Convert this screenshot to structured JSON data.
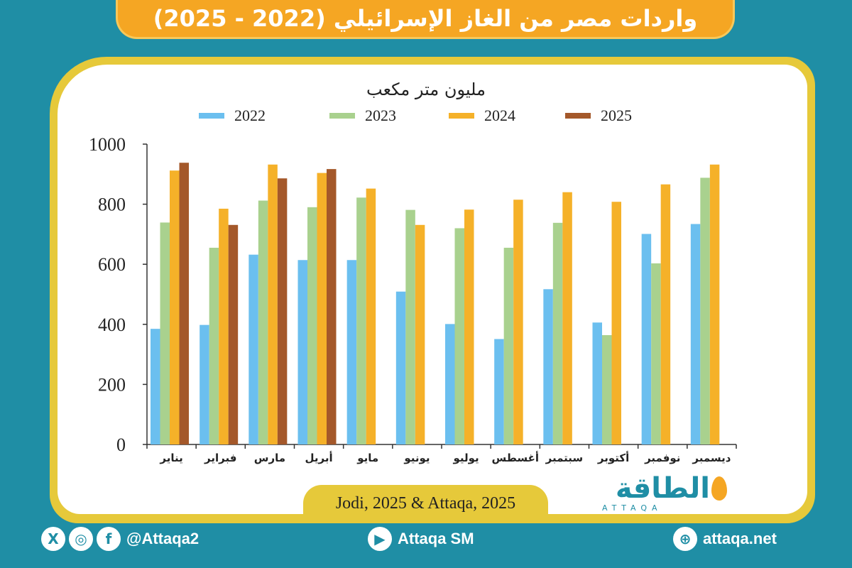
{
  "title": "واردات مصر من الغاز الإسرائيلي (2022 - 2025)",
  "source": "Jodi, 2025 & Attaqa, 2025",
  "logo": {
    "arabic": "الطاقة",
    "latin": "ATTAQA"
  },
  "footer": {
    "social_handle": "@Attaqa2",
    "youtube": "Attaqa SM",
    "website": "attaqa.net"
  },
  "colors": {
    "background": "#1f8ea5",
    "banner": "#f5a623",
    "border": "#e6c93a",
    "series_2022": "#6bbfef",
    "series_2023": "#a9d18e",
    "series_2024": "#f5b129",
    "series_2025": "#a4582a"
  },
  "chart_data": {
    "type": "bar",
    "ylabel": "مليون متر مكعب",
    "ylim": [
      0,
      1000
    ],
    "yticks": [
      0,
      200,
      400,
      600,
      800,
      1000
    ],
    "grid": false,
    "legend_position": "top",
    "categories": [
      "يناير",
      "فبراير",
      "مارس",
      "أبريل",
      "مايو",
      "يونيو",
      "يوليو",
      "أغسطس",
      "سبتمبر",
      "أكتوبر",
      "نوفمبر",
      "ديسمبر"
    ],
    "series": [
      {
        "name": "2022",
        "color": "#6bbfef",
        "values": [
          385,
          398,
          632,
          614,
          614,
          509,
          401,
          351,
          517,
          406,
          701,
          734
        ]
      },
      {
        "name": "2023",
        "color": "#a9d18e",
        "values": [
          739,
          655,
          812,
          790,
          822,
          781,
          720,
          655,
          738,
          364,
          603,
          888
        ]
      },
      {
        "name": "2024",
        "color": "#f5b129",
        "values": [
          912,
          785,
          932,
          904,
          852,
          731,
          782,
          815,
          840,
          808,
          866,
          932
        ]
      },
      {
        "name": "2025",
        "color": "#a4582a",
        "values": [
          938,
          731,
          886,
          917,
          null,
          null,
          null,
          null,
          null,
          null,
          null,
          null
        ]
      }
    ]
  }
}
